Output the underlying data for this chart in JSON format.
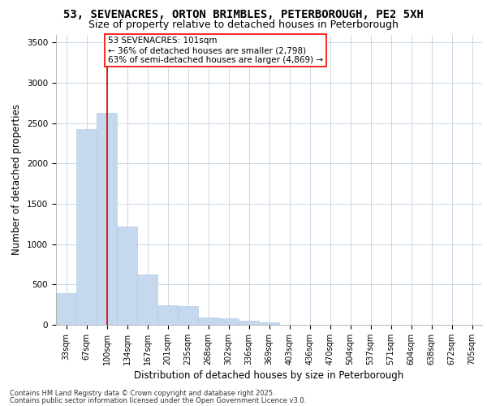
{
  "title1": "53, SEVENACRES, ORTON BRIMBLES, PETERBOROUGH, PE2 5XH",
  "title2": "Size of property relative to detached houses in Peterborough",
  "xlabel": "Distribution of detached houses by size in Peterborough",
  "ylabel": "Number of detached properties",
  "categories": [
    "33sqm",
    "67sqm",
    "100sqm",
    "134sqm",
    "167sqm",
    "201sqm",
    "235sqm",
    "268sqm",
    "302sqm",
    "336sqm",
    "369sqm",
    "403sqm",
    "436sqm",
    "470sqm",
    "504sqm",
    "537sqm",
    "571sqm",
    "604sqm",
    "638sqm",
    "672sqm",
    "705sqm"
  ],
  "values": [
    390,
    2430,
    2630,
    1220,
    620,
    240,
    230,
    90,
    80,
    50,
    30,
    0,
    0,
    0,
    0,
    0,
    0,
    0,
    0,
    0,
    0
  ],
  "bar_color": "#c5d8ed",
  "bar_edgecolor": "#aac4e0",
  "grid_color": "#c8d8e8",
  "background_color": "#ffffff",
  "plot_bg_color": "#ffffff",
  "annotation_text": "53 SEVENACRES: 101sqm\n← 36% of detached houses are smaller (2,798)\n63% of semi-detached houses are larger (4,869) →",
  "vline_bin": 2,
  "vline_color": "#cc0000",
  "ylim": [
    0,
    3600
  ],
  "yticks": [
    0,
    500,
    1000,
    1500,
    2000,
    2500,
    3000,
    3500
  ],
  "footnote1": "Contains HM Land Registry data © Crown copyright and database right 2025.",
  "footnote2": "Contains public sector information licensed under the Open Government Licence v3.0.",
  "title_fontsize": 10,
  "subtitle_fontsize": 9,
  "tick_fontsize": 7,
  "label_fontsize": 8.5,
  "annotation_fontsize": 7.5,
  "footnote_fontsize": 6
}
